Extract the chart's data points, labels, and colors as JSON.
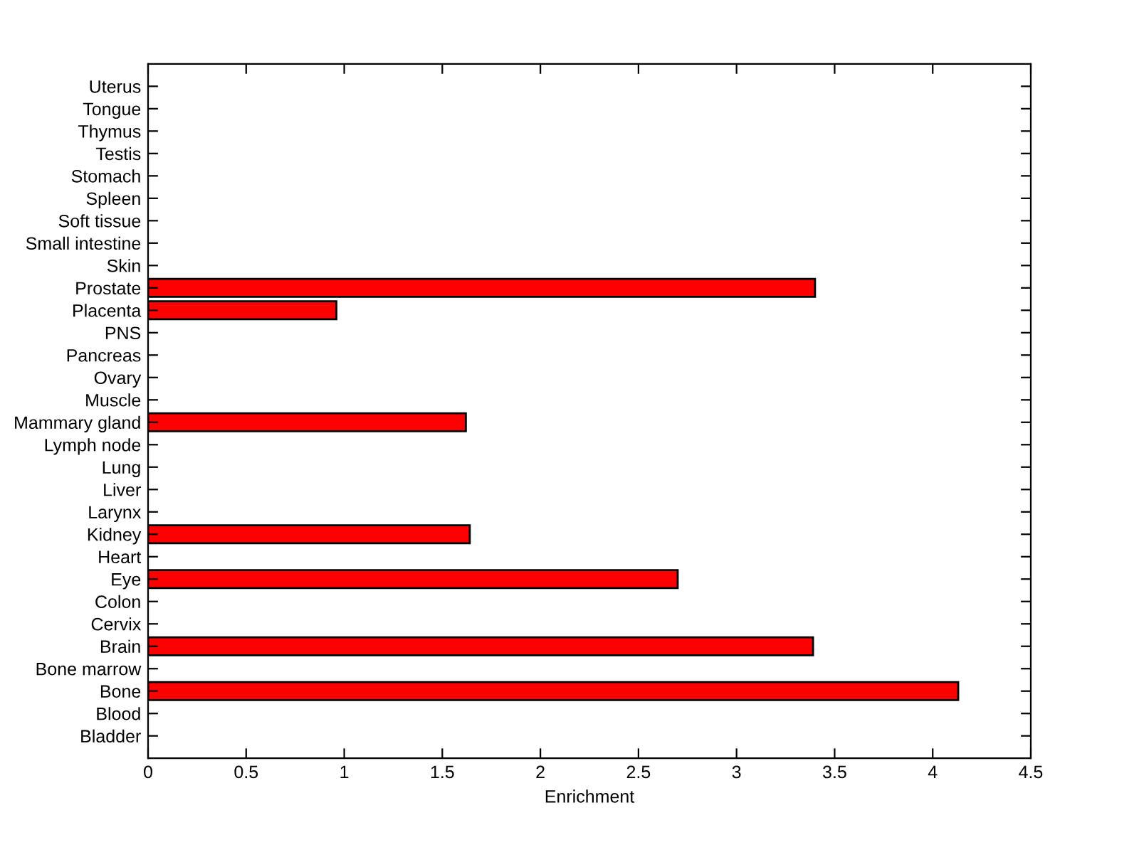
{
  "chart_data": {
    "type": "bar",
    "orientation": "horizontal",
    "xlabel": "Enrichment",
    "categories": [
      "Uterus",
      "Tongue",
      "Thymus",
      "Testis",
      "Stomach",
      "Spleen",
      "Soft tissue",
      "Small intestine",
      "Skin",
      "Prostate",
      "Placenta",
      "PNS",
      "Pancreas",
      "Ovary",
      "Muscle",
      "Mammary gland",
      "Lymph node",
      "Lung",
      "Liver",
      "Larynx",
      "Kidney",
      "Heart",
      "Eye",
      "Colon",
      "Cervix",
      "Brain",
      "Bone marrow",
      "Bone",
      "Blood",
      "Bladder"
    ],
    "values": [
      null,
      null,
      null,
      null,
      null,
      null,
      null,
      null,
      null,
      3.4,
      0.96,
      null,
      null,
      null,
      null,
      1.62,
      null,
      null,
      null,
      null,
      1.64,
      null,
      2.7,
      null,
      null,
      3.39,
      null,
      4.13,
      null,
      null
    ],
    "color": "#ff0000",
    "xlim": [
      0,
      4.5
    ],
    "xticks": [
      0,
      0.5,
      1,
      1.5,
      2,
      2.5,
      3,
      3.5,
      4,
      4.5
    ],
    "grid": false,
    "legend": false
  }
}
